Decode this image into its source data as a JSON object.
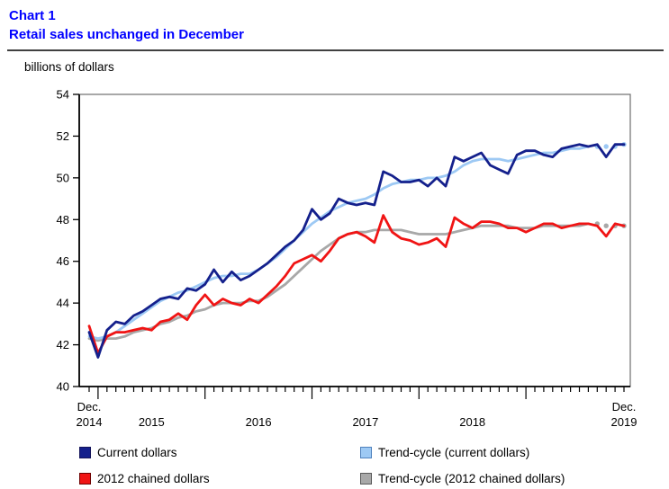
{
  "header": {
    "chart_label": "Chart 1",
    "title": "Retail sales unchanged in December"
  },
  "unit_label": "billions of dollars",
  "chart_data": {
    "type": "line",
    "title": "Retail sales unchanged in December",
    "xlabel": "",
    "ylabel": "billions of dollars",
    "ylim": [
      40,
      54
    ],
    "y_ticks": [
      40,
      42,
      44,
      46,
      48,
      50,
      52,
      54
    ],
    "grid": false,
    "legend_position": "bottom",
    "x_start_label": {
      "line1": "Dec.",
      "line2": "2014"
    },
    "x_end_label": {
      "line1": "Dec.",
      "line2": "2019"
    },
    "x_year_labels": [
      "2015",
      "2016",
      "2017",
      "2018"
    ],
    "x_tall_tick_month_indices": [
      1,
      13,
      25,
      37,
      49
    ],
    "draw_order": [
      3,
      1,
      2,
      0
    ],
    "categories": [
      "Dec 2014",
      "Jan 2015",
      "Feb 2015",
      "Mar 2015",
      "Apr 2015",
      "May 2015",
      "Jun 2015",
      "Jul 2015",
      "Aug 2015",
      "Sep 2015",
      "Oct 2015",
      "Nov 2015",
      "Dec 2015",
      "Jan 2016",
      "Feb 2016",
      "Mar 2016",
      "Apr 2016",
      "May 2016",
      "Jun 2016",
      "Jul 2016",
      "Aug 2016",
      "Sep 2016",
      "Oct 2016",
      "Nov 2016",
      "Dec 2016",
      "Jan 2017",
      "Feb 2017",
      "Mar 2017",
      "Apr 2017",
      "May 2017",
      "Jun 2017",
      "Jul 2017",
      "Aug 2017",
      "Sep 2017",
      "Oct 2017",
      "Nov 2017",
      "Dec 2017",
      "Jan 2018",
      "Feb 2018",
      "Mar 2018",
      "Apr 2018",
      "May 2018",
      "Jun 2018",
      "Jul 2018",
      "Aug 2018",
      "Sep 2018",
      "Oct 2018",
      "Nov 2018",
      "Dec 2018",
      "Jan 2019",
      "Feb 2019",
      "Mar 2019",
      "Apr 2019",
      "May 2019",
      "Jun 2019",
      "Jul 2019",
      "Aug 2019",
      "Sep 2019",
      "Oct 2019",
      "Nov 2019",
      "Dec 2019"
    ],
    "series": [
      {
        "id": "current-dollars",
        "name": "Current dollars",
        "color": "#14208c",
        "swatch_border": "#14145a",
        "values": [
          42.6,
          41.4,
          42.7,
          43.1,
          43.0,
          43.4,
          43.6,
          43.9,
          44.2,
          44.3,
          44.2,
          44.7,
          44.6,
          44.9,
          45.6,
          45.0,
          45.5,
          45.1,
          45.3,
          45.6,
          45.9,
          46.3,
          46.7,
          47.0,
          47.5,
          48.5,
          48.0,
          48.3,
          49.0,
          48.8,
          48.7,
          48.8,
          48.7,
          50.3,
          50.1,
          49.8,
          49.8,
          49.9,
          49.6,
          50.0,
          49.6,
          51.0,
          50.8,
          51.0,
          51.2,
          50.6,
          50.4,
          50.2,
          51.1,
          51.3,
          51.3,
          51.1,
          51.0,
          51.4,
          51.5,
          51.6,
          51.5,
          51.6,
          51.0,
          51.6,
          51.6
        ]
      },
      {
        "id": "trend-cycle-current-dollars",
        "name": "Trend-cycle (current dollars)",
        "color": "#9dc9f4",
        "swatch_border": "#4f81bd",
        "trailing_dots": 4,
        "values": [
          42.4,
          42.3,
          42.4,
          42.6,
          42.9,
          43.2,
          43.5,
          43.8,
          44.1,
          44.3,
          44.5,
          44.6,
          44.8,
          45.0,
          45.2,
          45.3,
          45.3,
          45.4,
          45.4,
          45.6,
          45.9,
          46.2,
          46.6,
          47.0,
          47.4,
          47.8,
          48.1,
          48.4,
          48.6,
          48.8,
          48.9,
          49.0,
          49.2,
          49.5,
          49.7,
          49.8,
          49.9,
          49.9,
          50.0,
          50.0,
          50.1,
          50.3,
          50.6,
          50.8,
          50.9,
          50.9,
          50.9,
          50.8,
          50.9,
          51.0,
          51.1,
          51.2,
          51.2,
          51.3,
          51.4,
          51.4,
          51.5,
          51.5,
          51.5,
          51.5,
          51.6
        ]
      },
      {
        "id": "2012-chained-dollars",
        "name": "2012 chained dollars",
        "color": "#f01414",
        "swatch_border": "#6e0000",
        "values": [
          42.9,
          41.6,
          42.4,
          42.6,
          42.6,
          42.7,
          42.8,
          42.7,
          43.1,
          43.2,
          43.5,
          43.2,
          43.9,
          44.4,
          43.9,
          44.2,
          44.0,
          43.9,
          44.2,
          44.0,
          44.4,
          44.8,
          45.3,
          45.9,
          46.1,
          46.3,
          46.0,
          46.5,
          47.1,
          47.3,
          47.4,
          47.2,
          46.9,
          48.2,
          47.4,
          47.1,
          47.0,
          46.8,
          46.9,
          47.1,
          46.7,
          48.1,
          47.8,
          47.6,
          47.9,
          47.9,
          47.8,
          47.6,
          47.6,
          47.4,
          47.6,
          47.8,
          47.8,
          47.6,
          47.7,
          47.8,
          47.8,
          47.7,
          47.2,
          47.8,
          47.7
        ]
      },
      {
        "id": "trend-cycle-2012-chained-dollars",
        "name": "Trend-cycle (2012 chained dollars)",
        "color": "#a8a8a8",
        "swatch_border": "#595959",
        "trailing_dots": 4,
        "values": [
          42.3,
          42.2,
          42.3,
          42.3,
          42.4,
          42.6,
          42.7,
          42.8,
          43.0,
          43.1,
          43.3,
          43.4,
          43.6,
          43.7,
          43.9,
          44.0,
          44.0,
          44.0,
          44.1,
          44.1,
          44.3,
          44.6,
          44.9,
          45.3,
          45.7,
          46.1,
          46.5,
          46.8,
          47.1,
          47.3,
          47.4,
          47.4,
          47.5,
          47.5,
          47.5,
          47.5,
          47.4,
          47.3,
          47.3,
          47.3,
          47.3,
          47.4,
          47.5,
          47.6,
          47.7,
          47.7,
          47.7,
          47.7,
          47.6,
          47.6,
          47.6,
          47.7,
          47.7,
          47.7,
          47.7,
          47.7,
          47.8,
          47.8,
          47.7,
          47.7,
          47.7
        ]
      }
    ]
  }
}
